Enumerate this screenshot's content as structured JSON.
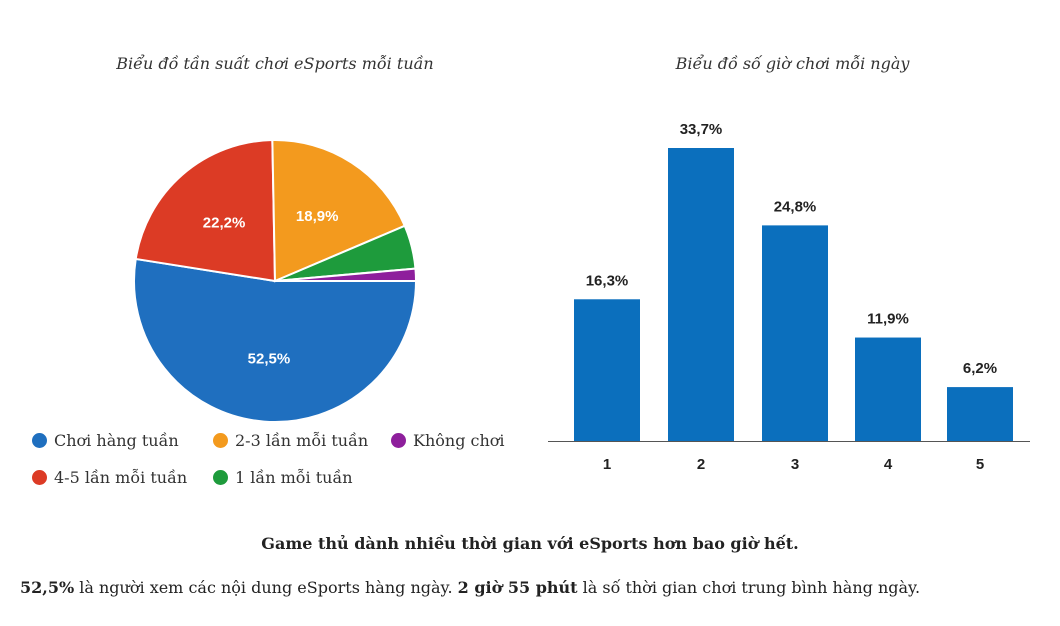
{
  "chart_data": [
    {
      "type": "pie",
      "title": "Biểu đồ tần suất chơi eSports mỗi tuần",
      "slices": [
        {
          "label": "Chơi hàng tuần",
          "value": 52.5,
          "value_label": "52,5%",
          "color": "#1f6fbf"
        },
        {
          "label": "4-5 lần mỗi tuần",
          "value": 22.2,
          "value_label": "22,2%",
          "color": "#dc3b25"
        },
        {
          "label": "2-3 lần mỗi tuần",
          "value": 18.9,
          "value_label": "18,9%",
          "color": "#f39a1e"
        },
        {
          "label": "1 lần mỗi tuần",
          "value": 5.0,
          "value_label": "",
          "color": "#1e9b3c"
        },
        {
          "label": "Không chơi",
          "value": 1.4,
          "value_label": "",
          "color": "#8e1f9c"
        }
      ],
      "legend_position": "bottom"
    },
    {
      "type": "bar",
      "title": "Biểu đồ số giờ chơi mỗi ngày",
      "categories": [
        "1",
        "2",
        "3",
        "4",
        "5"
      ],
      "values": [
        16.3,
        33.7,
        24.8,
        11.9,
        6.2
      ],
      "value_labels": [
        "16,3%",
        "33,7%",
        "24,8%",
        "11,9%",
        "6,2%"
      ],
      "color": "#0b6fbd",
      "ylim": [
        0,
        33.7
      ],
      "grid": false
    }
  ],
  "legend": {
    "row1": [
      "Chơi hàng tuần",
      "2-3 lần mỗi tuần",
      "Không chơi"
    ],
    "row2": [
      "4-5 lần mỗi tuần",
      "1 lần mỗi tuần"
    ]
  },
  "headline": "Game thủ dành nhiều thời gian với eSports hơn bao giờ hết.",
  "summary": {
    "pct": "52,5%",
    "text1": " là người xem các nội dung eSports hàng ngày. ",
    "time": "2 giờ 55 phút",
    "text2": " là số thời gian chơi trung bình hàng ngày."
  }
}
